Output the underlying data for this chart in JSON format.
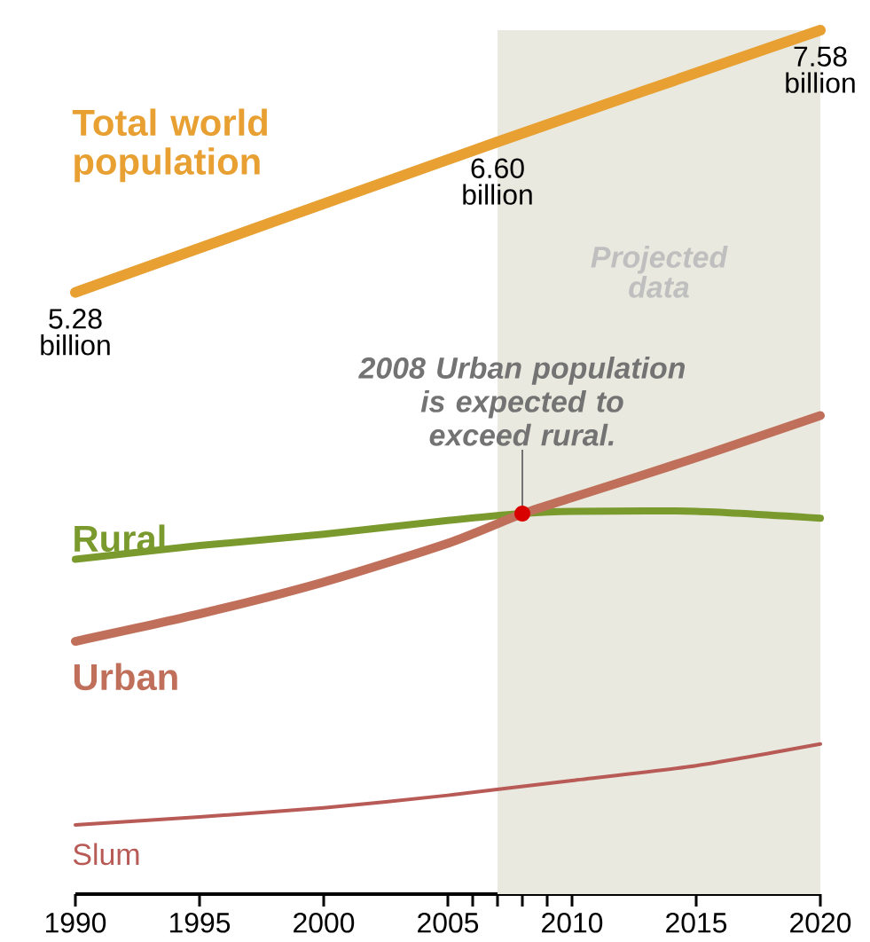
{
  "chart_data": {
    "type": "line",
    "xlim": [
      1990,
      2020
    ],
    "xticks": [
      1990,
      1995,
      2000,
      2005,
      {
        "value": 2006,
        "label": null
      },
      {
        "value": 2007,
        "label": null
      },
      {
        "value": 2008,
        "label": null
      },
      {
        "value": 2009,
        "label": null
      },
      2010,
      2015,
      2020
    ],
    "series": [
      {
        "name": "Total world population",
        "color": "#e8a032",
        "x": [
          1990,
          2007,
          2020
        ],
        "values": [
          5.28,
          6.6,
          7.58
        ],
        "value_labels": [
          "5.28 billion",
          "6.60 billion",
          "7.58 billion"
        ]
      },
      {
        "name": "Rural",
        "color": "#7a9a2e",
        "x": [
          1990,
          1995,
          2000,
          2005,
          2008,
          2010,
          2015,
          2020
        ],
        "values": [
          2.94,
          3.06,
          3.16,
          3.28,
          3.34,
          3.36,
          3.36,
          3.3
        ]
      },
      {
        "name": "Urban",
        "color": "#c0705a",
        "x": [
          1990,
          1995,
          2000,
          2005,
          2008,
          2010,
          2015,
          2020
        ],
        "values": [
          2.22,
          2.46,
          2.74,
          3.08,
          3.34,
          3.48,
          3.83,
          4.2
        ]
      },
      {
        "name": "Slum",
        "color": "#b85a55",
        "x": [
          1990,
          1995,
          2000,
          2005,
          2010,
          2015,
          2020
        ],
        "values": [
          0.61,
          0.68,
          0.76,
          0.87,
          1.0,
          1.13,
          1.32
        ]
      }
    ],
    "bands": [
      {
        "axis": "x",
        "from": 2007,
        "to": 2020,
        "label": "Projected data",
        "color": "#e9e9df"
      }
    ],
    "annotations": [
      {
        "text": "2008 Urban population is expected to exceed rural.",
        "x": 2008,
        "y": 3.34
      }
    ]
  }
}
